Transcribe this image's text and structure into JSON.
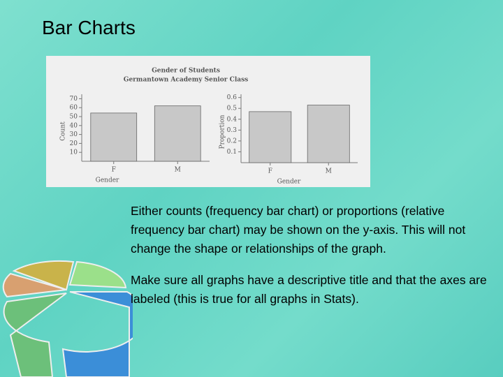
{
  "slide": {
    "title": "Bar Charts",
    "paragraphs": [
      "Either counts (frequency bar chart) or proportions (relative frequency bar chart) may be shown on the y-axis. This will not change the shape or relationships of the graph.",
      "Make sure all graphs have a descriptive title and that the axes are labeled (this is true for all graphs in Stats)."
    ]
  },
  "chart_data": [
    {
      "type": "bar",
      "title": "Gender of Students",
      "subtitle": "Germantown Academy Senior Class",
      "categories": [
        "F",
        "M"
      ],
      "values": [
        54,
        62
      ],
      "color": "#c8c8c8",
      "ylabel": "Count",
      "xlabel": "Gender",
      "ylim": [
        0,
        75
      ],
      "yticks": [
        10,
        20,
        30,
        40,
        50,
        60,
        70
      ]
    },
    {
      "type": "bar",
      "categories": [
        "F",
        "M"
      ],
      "values": [
        0.47,
        0.53
      ],
      "color": "#c8c8c8",
      "ylabel": "Proportion",
      "xlabel": "Gender",
      "ylim": [
        0,
        0.63
      ],
      "yticks": [
        0.1,
        0.2,
        0.3,
        0.4,
        0.5,
        0.6
      ]
    }
  ]
}
